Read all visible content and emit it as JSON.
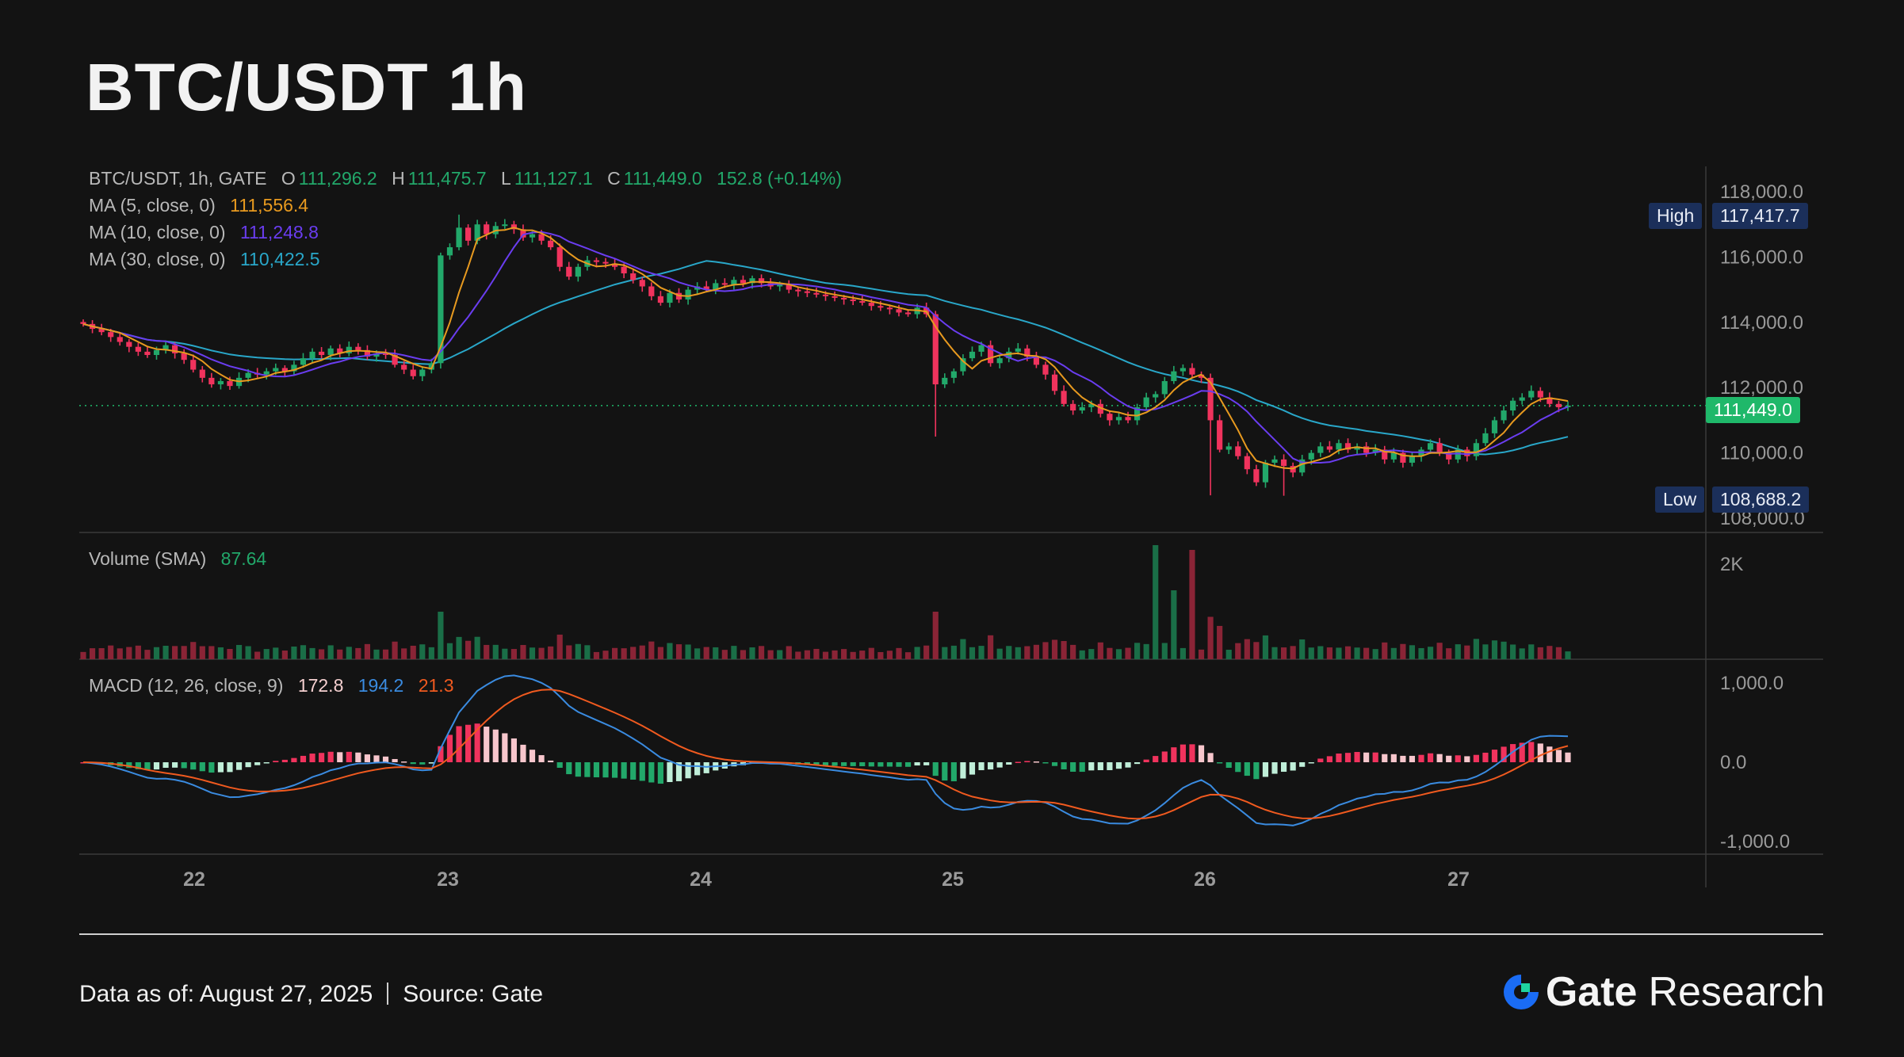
{
  "title": "BTC/USDT 1h",
  "legend": {
    "symbol": "BTC/USDT, 1h, GATE",
    "o_label": "O",
    "o_value": "111,296.2",
    "h_label": "H",
    "h_value": "111,475.7",
    "l_label": "L",
    "l_value": "111,127.1",
    "c_label": "C",
    "c_value": "111,449.0",
    "change": "152.8 (+0.14%)",
    "ma5_label": "MA (5, close, 0)",
    "ma5_value": "111,556.4",
    "ma10_label": "MA (10, close, 0)",
    "ma10_value": "111,248.8",
    "ma30_label": "MA (30, close, 0)",
    "ma30_value": "110,422.5"
  },
  "volume_legend": {
    "label": "Volume (SMA)",
    "value": "87.64"
  },
  "macd_legend": {
    "label": "MACD (12, 26, close, 9)",
    "v1": "172.8",
    "v2": "194.2",
    "v3": "21.3"
  },
  "tags": {
    "high_label": "High",
    "high_value": "117,417.7",
    "low_label": "Low",
    "low_value": "108,688.2",
    "last_value": "111,449.0"
  },
  "footer": {
    "date": "Data as of: August 27, 2025",
    "source": "Source: Gate"
  },
  "brand": {
    "gate": "Gate",
    "research": "Research"
  },
  "colors": {
    "up": "#22a86a",
    "down": "#f0335d",
    "ma5": "#e89a1f",
    "ma10": "#6a3df0",
    "ma30": "#29a7c9",
    "macd": "#3a8be0",
    "signal": "#f05a1f",
    "grid": "#2a2a2a",
    "axis_text": "#9a9a9a",
    "high_bg": "#1b2f5a",
    "last_bg": "#1fb86a"
  },
  "chart_data": {
    "type": "candlestick",
    "x_tick_labels": [
      "22",
      "23",
      "24",
      "25",
      "26",
      "27"
    ],
    "price_axis": {
      "ticks": [
        "118,000.0",
        "116,000.0",
        "114,000.0",
        "112,000.0",
        "110,000.0",
        "108,000.0"
      ],
      "ylim": [
        108000,
        118000
      ]
    },
    "volume_axis": {
      "ticks": [
        "2K"
      ],
      "ylim": [
        0,
        2500
      ]
    },
    "macd_axis": {
      "ticks": [
        "1,000.0",
        "0.0",
        "-1,000.0"
      ],
      "ylim": [
        -1000,
        1000
      ]
    },
    "closes": [
      113950,
      113800,
      113700,
      113550,
      113400,
      113250,
      113100,
      113000,
      113150,
      113300,
      113050,
      112850,
      112550,
      112300,
      112100,
      112200,
      112050,
      112300,
      112450,
      112400,
      112500,
      112600,
      112500,
      112700,
      112900,
      113100,
      113000,
      113200,
      113050,
      113250,
      113150,
      112950,
      113050,
      113000,
      112700,
      112550,
      112350,
      112550,
      112750,
      116050,
      116300,
      116900,
      116500,
      117000,
      116700,
      116950,
      117000,
      116850,
      116600,
      116700,
      116500,
      116300,
      115700,
      115400,
      115700,
      115900,
      115850,
      115800,
      115700,
      115500,
      115300,
      115100,
      114800,
      114600,
      114900,
      114700,
      115000,
      115100,
      115000,
      115200,
      115150,
      115300,
      115200,
      115350,
      115200,
      115100,
      115150,
      115000,
      114950,
      114900,
      114850,
      114800,
      114750,
      114700,
      114650,
      114600,
      114500,
      114450,
      114400,
      114300,
      114250,
      114450,
      114250,
      112100,
      112300,
      112500,
      112900,
      113100,
      113300,
      112750,
      112900,
      113100,
      113200,
      112950,
      112700,
      112400,
      111900,
      111500,
      111300,
      111400,
      111500,
      111200,
      111000,
      111100,
      111000,
      111400,
      111700,
      111800,
      112200,
      112500,
      112600,
      112400,
      112300,
      111000,
      110100,
      110200,
      109900,
      109500,
      109100,
      109700,
      109800,
      109600,
      109400,
      109800,
      110000,
      110200,
      110100,
      110300,
      110100,
      110200,
      110000,
      110100,
      109800,
      110000,
      109700,
      109900,
      110100,
      110300,
      110000,
      109800,
      110100,
      109900,
      110300,
      110600,
      111000,
      111300,
      111600,
      111700,
      111900,
      111700,
      111500,
      111400,
      111449
    ],
    "high_price": 117417.7,
    "low_price": 108688.2,
    "last_price": 111449.0
  }
}
